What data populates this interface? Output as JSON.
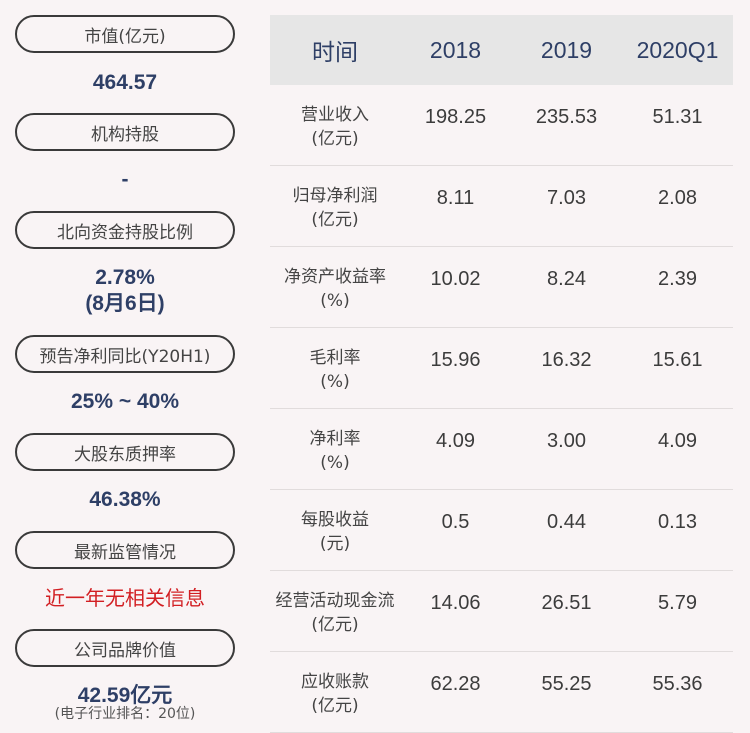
{
  "left_panel": [
    {
      "label": "市值(亿元)",
      "value": "464.57"
    },
    {
      "label": "机构持股",
      "value": "-"
    },
    {
      "label": "北向资金持股比例",
      "value": "2.78%",
      "value2": "(8月6日)"
    },
    {
      "label": "预告净利同比(Y20H1)",
      "value": "25% ~ 40%"
    },
    {
      "label": "大股东质押率",
      "value": "46.38%"
    },
    {
      "label": "最新监管情况",
      "value": "近一年无相关信息"
    },
    {
      "label": "公司品牌价值",
      "value": "42.59亿元",
      "note": "(电子行业排名：20位)"
    }
  ],
  "table": {
    "headers": [
      "时间",
      "2018",
      "2019",
      "2020Q1"
    ],
    "rows": [
      {
        "label1": "营业收入",
        "label2": "(亿元)",
        "values": [
          "198.25",
          "235.53",
          "51.31"
        ]
      },
      {
        "label1": "归母净利润",
        "label2": "(亿元)",
        "values": [
          "8.11",
          "7.03",
          "2.08"
        ]
      },
      {
        "label1": "净资产收益率",
        "label2": "(%)",
        "values": [
          "10.02",
          "8.24",
          "2.39"
        ]
      },
      {
        "label1": "毛利率",
        "label2": "(%)",
        "values": [
          "15.96",
          "16.32",
          "15.61"
        ]
      },
      {
        "label1": "净利率",
        "label2": "(%)",
        "values": [
          "4.09",
          "3.00",
          "4.09"
        ]
      },
      {
        "label1": "每股收益",
        "label2": "(元)",
        "values": [
          "0.5",
          "0.44",
          "0.13"
        ]
      },
      {
        "label1": "经营活动现金流",
        "label2": "(亿元)",
        "values": [
          "14.06",
          "26.51",
          "5.79"
        ]
      },
      {
        "label1": "应收账款",
        "label2": "(亿元)",
        "values": [
          "62.28",
          "55.25",
          "55.36"
        ]
      }
    ]
  },
  "colors": {
    "background": "#f9f4f5",
    "value_blue": "#2e3f66",
    "alert_red": "#d21f23",
    "header_bg": "#e6e6e6"
  }
}
